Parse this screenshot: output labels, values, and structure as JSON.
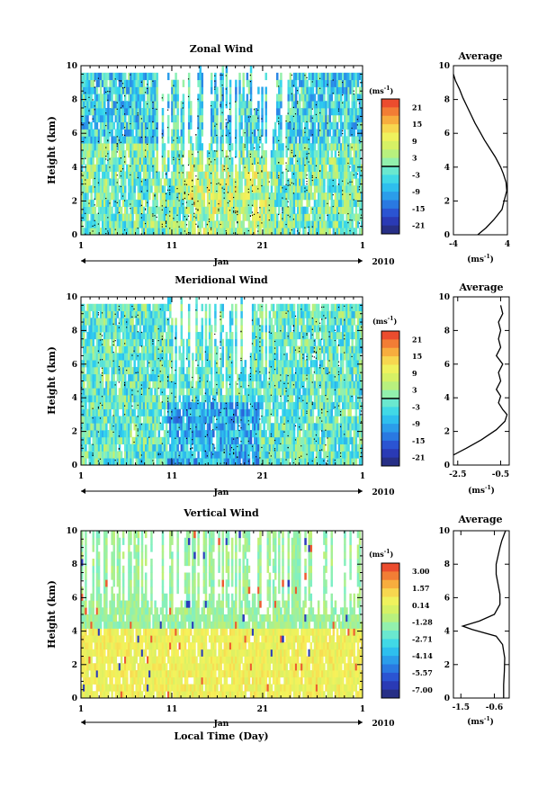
{
  "figure": {
    "date_axis_month": "Jan",
    "date_axis_year": "2010",
    "x_axis_title": "Local Time (Day)"
  },
  "chart_data": [
    {
      "type": "heatmap",
      "title": "Zonal Wind",
      "ylabel": "Height (km)",
      "xlim": [
        1,
        32
      ],
      "ylim": [
        0,
        10
      ],
      "x_ticks": [
        "1",
        "11",
        "21",
        "1"
      ],
      "y_ticks": [
        "0",
        "2",
        "4",
        "6",
        "8",
        "10"
      ],
      "colorbar": {
        "unit_base": "(ms",
        "unit_exp": "-1",
        "unit_close": ")",
        "ticks": [
          "21",
          "15",
          "9",
          "3",
          "-3",
          "-9",
          "-15",
          "-21"
        ],
        "min": -24,
        "max": 24,
        "zero_line": true
      },
      "field": "mixed westerly/easterly wind 0-9.5 km, easterly (blue) dominant near surface in late month"
    },
    {
      "type": "heatmap",
      "title": "Meridional Wind",
      "ylabel": "Height (km)",
      "xlim": [
        1,
        32
      ],
      "ylim": [
        0,
        10
      ],
      "x_ticks": [
        "1",
        "11",
        "21",
        "1"
      ],
      "y_ticks": [
        "0",
        "2",
        "4",
        "6",
        "8",
        "10"
      ],
      "colorbar": {
        "unit_base": "(ms",
        "unit_exp": "-1",
        "unit_close": ")",
        "ticks": [
          "21",
          "15",
          "9",
          "3",
          "-3",
          "-9",
          "-15",
          "-21"
        ],
        "min": -24,
        "max": 24,
        "zero_line": true
      },
      "field": "predominantly northerly (blue) below 4 km around days 11-21"
    },
    {
      "type": "heatmap",
      "title": "Vertical Wind",
      "ylabel": "Height (km)",
      "xlim": [
        1,
        32
      ],
      "ylim": [
        0,
        10
      ],
      "x_ticks": [
        "1",
        "11",
        "21",
        "1"
      ],
      "y_ticks": [
        "0",
        "2",
        "4",
        "6",
        "8",
        "10"
      ],
      "colorbar": {
        "unit_base": "(ms",
        "unit_exp": "-1",
        "unit_close": ")",
        "ticks": [
          "3.00",
          "1.57",
          "0.14",
          "-1.28",
          "-2.71",
          "-4.14",
          "-5.57",
          "-7.00"
        ],
        "min": -7.7,
        "max": 3.7,
        "zero_line": false
      },
      "field": "mostly near-zero values (yellow) below 4 km, green above"
    },
    {
      "type": "line",
      "title": "Average",
      "xlabel_base": "(ms",
      "xlabel_exp": "-1",
      "xlabel_close": ")",
      "xlim": [
        -4,
        4
      ],
      "ylim": [
        0,
        10
      ],
      "x_ticks": [
        "-4",
        "4"
      ],
      "y_ticks": [
        "0",
        "2",
        "4",
        "6",
        "8",
        "10"
      ],
      "series": [
        {
          "x": [
            -0.4,
            0.8,
            2.0,
            3.2,
            3.5,
            3.9,
            3.8,
            3.4,
            3.0,
            2.2,
            1.4,
            0.6,
            -0.1,
            -0.8,
            -1.4,
            -2.0,
            -2.6,
            -3.1,
            -3.7,
            -4.0
          ],
          "y": [
            0.0,
            0.4,
            0.9,
            1.5,
            2.0,
            2.6,
            3.1,
            3.6,
            4.0,
            4.6,
            5.1,
            5.6,
            6.1,
            6.6,
            7.1,
            7.6,
            8.1,
            8.6,
            9.1,
            9.5
          ]
        }
      ]
    },
    {
      "type": "line",
      "title": "Average",
      "xlabel_base": "(ms",
      "xlabel_exp": "-1",
      "xlabel_close": ")",
      "xlim": [
        -2.7,
        -0.1
      ],
      "ylim": [
        0,
        10
      ],
      "x_ticks": [
        "-2.5",
        "-0.5"
      ],
      "y_ticks": [
        "0",
        "2",
        "4",
        "6",
        "8",
        "10"
      ],
      "series": [
        {
          "x": [
            -2.7,
            -2.1,
            -1.4,
            -0.7,
            -0.3,
            -0.2,
            -0.4,
            -0.6,
            -0.5,
            -0.7,
            -0.5,
            -0.6,
            -0.4,
            -0.7,
            -0.5,
            -0.6,
            -0.5,
            -0.6,
            -0.4,
            -0.5
          ],
          "y": [
            0.6,
            1.0,
            1.5,
            2.1,
            2.6,
            3.0,
            3.3,
            3.7,
            4.1,
            4.5,
            5.0,
            5.5,
            6.0,
            6.5,
            7.0,
            7.5,
            8.0,
            8.5,
            9.0,
            9.5
          ]
        }
      ]
    },
    {
      "type": "line",
      "title": "Average",
      "xlabel_base": "(ms",
      "xlabel_exp": "-1",
      "xlabel_close": ")",
      "xlim": [
        -1.7,
        -0.2
      ],
      "ylim": [
        0,
        10
      ],
      "x_ticks": [
        "-1.5",
        "-0.6"
      ],
      "y_ticks": [
        "0",
        "2",
        "4",
        "6",
        "8",
        "10"
      ],
      "series": [
        {
          "x": [
            -0.35,
            -0.35,
            -0.33,
            -0.32,
            -0.38,
            -0.55,
            -1.2,
            -1.45,
            -1.0,
            -0.6,
            -0.45,
            -0.45,
            -0.5,
            -0.55,
            -0.55,
            -0.5,
            -0.45,
            -0.4,
            -0.35,
            -0.3
          ],
          "y": [
            0.0,
            0.8,
            1.6,
            2.4,
            3.2,
            3.7,
            4.1,
            4.3,
            4.6,
            5.0,
            5.6,
            6.2,
            6.8,
            7.4,
            8.0,
            8.5,
            9.0,
            9.4,
            9.7,
            10.0
          ]
        }
      ]
    }
  ]
}
